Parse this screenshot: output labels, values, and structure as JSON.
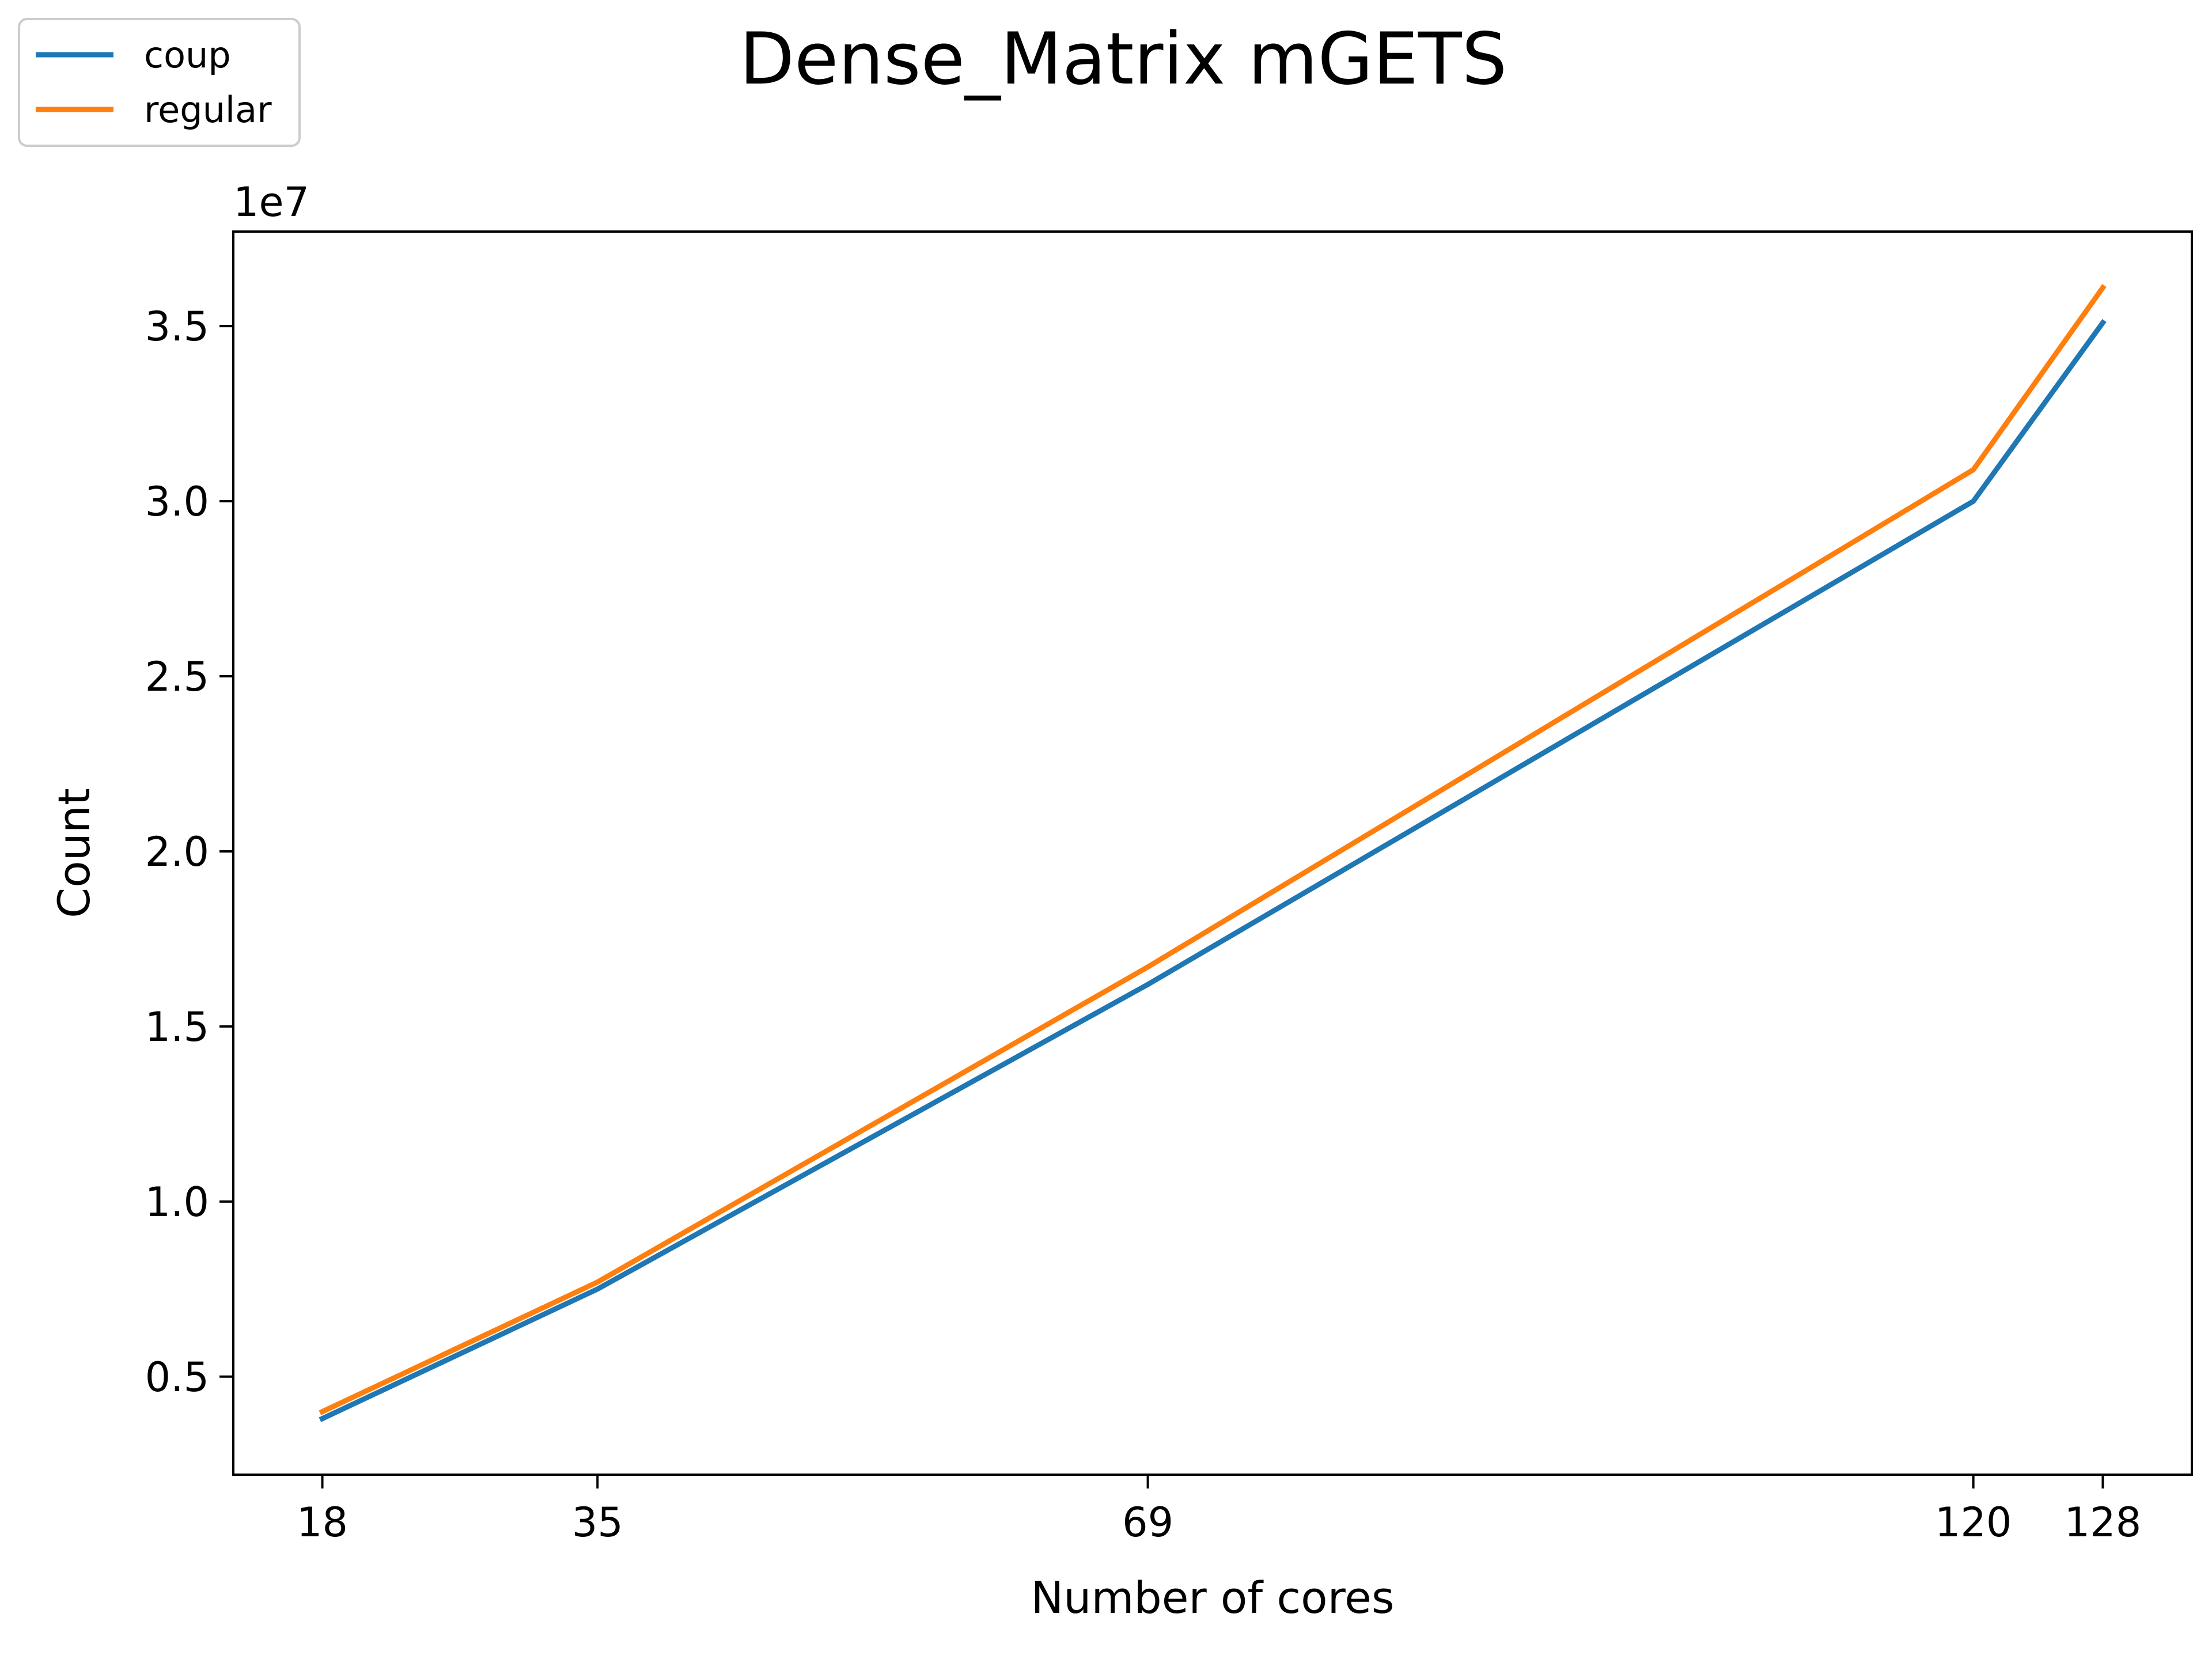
{
  "chart_data": {
    "type": "line",
    "title": "Dense_Matrix mGETS",
    "xlabel": "Number of cores",
    "ylabel": "Count",
    "y_offset_label": "1e7",
    "x": [
      18,
      35,
      69,
      120,
      128
    ],
    "x_ticks": [
      "18",
      "35",
      "69",
      "120",
      "128"
    ],
    "y_ticks": [
      0.5,
      1.0,
      1.5,
      2.0,
      2.5,
      3.0,
      3.5
    ],
    "y_tick_labels": [
      "0.5",
      "1.0",
      "1.5",
      "2.0",
      "2.5",
      "3.0",
      "3.5"
    ],
    "y_scale": 10000000,
    "xlim": [
      12.5,
      133.5
    ],
    "ylim": [
      0.22,
      3.77
    ],
    "grid": false,
    "legend_position": "top-left",
    "series": [
      {
        "name": "coup",
        "color": "#1f77b4",
        "values": [
          0.38,
          0.75,
          1.62,
          3.0,
          3.51
        ]
      },
      {
        "name": "regular",
        "color": "#ff7f0e",
        "values": [
          0.4,
          0.77,
          1.67,
          3.09,
          3.61
        ]
      }
    ]
  }
}
